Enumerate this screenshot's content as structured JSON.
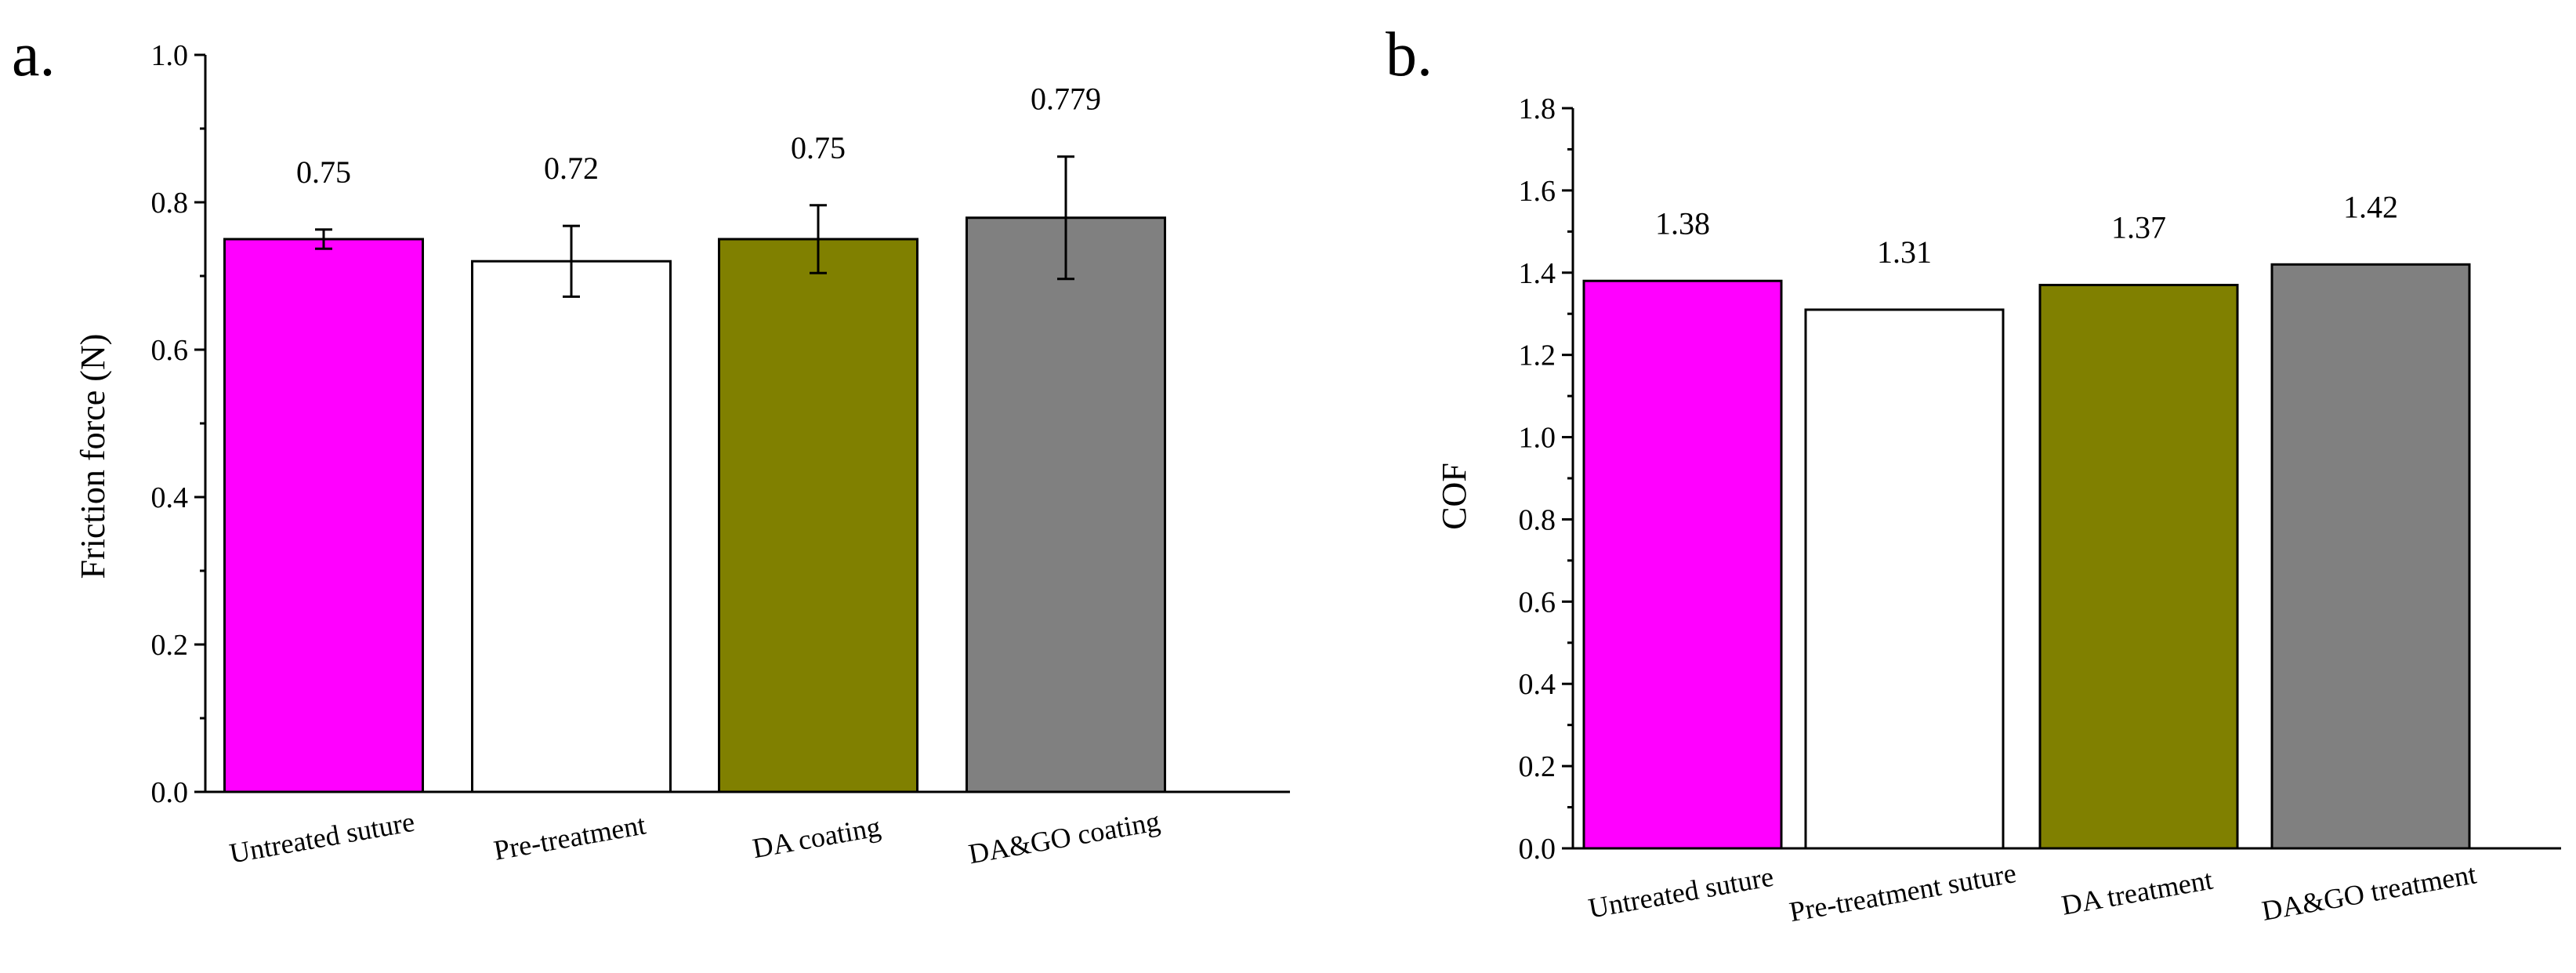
{
  "figure": {
    "panels": [
      "a.",
      "b."
    ]
  },
  "chart_data": [
    {
      "panel_label": "a.",
      "type": "bar",
      "categories": [
        "Untreated suture",
        "Pre-treatment",
        "DA coating",
        "DA&GO coating"
      ],
      "values": [
        0.75,
        0.72,
        0.75,
        0.779
      ],
      "errors": [
        0.013,
        0.048,
        0.046,
        0.083
      ],
      "data_labels": [
        "0.75",
        "0.72",
        "0.75",
        "0.779"
      ],
      "colors": [
        "#ff00ff",
        "#ffffff",
        "#808000",
        "#808080"
      ],
      "title": "",
      "xlabel": "",
      "ylabel": "Friction force (N)",
      "ylim": [
        0,
        1.0
      ],
      "yticks": [
        0.0,
        0.2,
        0.4,
        0.6,
        0.8,
        1.0
      ],
      "ytick_labels": [
        "0.0",
        "0.2",
        "0.4",
        "0.6",
        "0.8",
        "1.0"
      ]
    },
    {
      "panel_label": "b.",
      "type": "bar",
      "categories": [
        "Untreated suture",
        "Pre-treatment suture",
        "DA treatment",
        "DA&GO treatment"
      ],
      "values": [
        1.38,
        1.31,
        1.37,
        1.42
      ],
      "data_labels": [
        "1.38",
        "1.31",
        "1.37",
        "1.42"
      ],
      "colors": [
        "#ff00ff",
        "#ffffff",
        "#808000",
        "#808080"
      ],
      "title": "",
      "xlabel": "",
      "ylabel": "COF",
      "ylim": [
        0,
        1.8
      ],
      "yticks": [
        0.0,
        0.2,
        0.4,
        0.6,
        0.8,
        1.0,
        1.2,
        1.4,
        1.6,
        1.8
      ],
      "ytick_labels": [
        "0.0",
        "0.2",
        "0.4",
        "0.6",
        "0.8",
        "1.0",
        "1.2",
        "1.4",
        "1.6",
        "1.8"
      ]
    }
  ]
}
